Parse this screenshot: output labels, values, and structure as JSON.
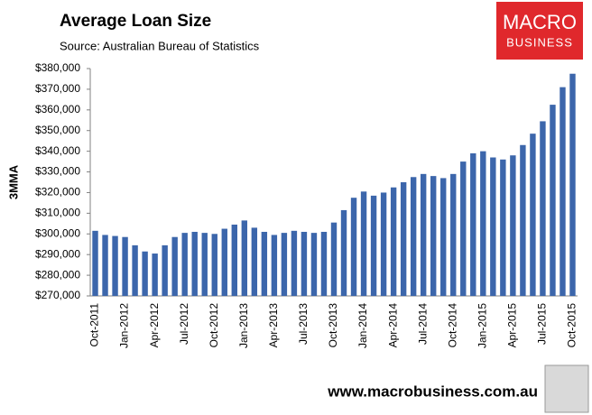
{
  "chart_data": {
    "type": "bar",
    "title": "Average Loan Size",
    "subtitle": "Source: Australian Bureau of Statistics",
    "y_label": "3MMA",
    "footer": "www.macrobusiness.com.au",
    "logo": {
      "line1": "MACRO",
      "line2": "BUSINESS"
    },
    "color": "#3c66ab",
    "categories": [
      "Oct-2011",
      null,
      null,
      "Jan-2012",
      null,
      null,
      "Apr-2012",
      null,
      null,
      "Jul-2012",
      null,
      null,
      "Oct-2012",
      null,
      null,
      "Jan-2013",
      null,
      null,
      "Apr-2013",
      null,
      null,
      "Jul-2013",
      null,
      null,
      "Oct-2013",
      null,
      null,
      "Jan-2014",
      null,
      null,
      "Apr-2014",
      null,
      null,
      "Jul-2014",
      null,
      null,
      "Oct-2014",
      null,
      null,
      "Jan-2015",
      null,
      null,
      "Apr-2015",
      null,
      null,
      "Jul-2015",
      null,
      null,
      "Oct-2015"
    ],
    "values": [
      301500,
      299500,
      299000,
      298500,
      294500,
      291500,
      290500,
      294500,
      298500,
      300500,
      301000,
      300500,
      300000,
      302500,
      304500,
      306500,
      303000,
      301000,
      299500,
      300500,
      301500,
      301000,
      300500,
      301000,
      305500,
      311500,
      317500,
      320500,
      318500,
      320000,
      322500,
      325000,
      327500,
      329000,
      328000,
      327000,
      329000,
      335000,
      339000,
      340000,
      337000,
      336000,
      338000,
      343000,
      348500,
      354500,
      362500,
      371000,
      377500
    ],
    "ylim": [
      270000,
      380000
    ],
    "yticks": [
      {
        "value": 270000,
        "label": "$270,000"
      },
      {
        "value": 280000,
        "label": "$280,000"
      },
      {
        "value": 290000,
        "label": "$290,000"
      },
      {
        "value": 300000,
        "label": "$300,000"
      },
      {
        "value": 310000,
        "label": "$310,000"
      },
      {
        "value": 320000,
        "label": "$320,000"
      },
      {
        "value": 330000,
        "label": "$330,000"
      },
      {
        "value": 340000,
        "label": "$340,000"
      },
      {
        "value": 350000,
        "label": "$350,000"
      },
      {
        "value": 360000,
        "label": "$360,000"
      },
      {
        "value": 370000,
        "label": "$370,000"
      },
      {
        "value": 380000,
        "label": "$380,000"
      }
    ],
    "grid": false
  }
}
